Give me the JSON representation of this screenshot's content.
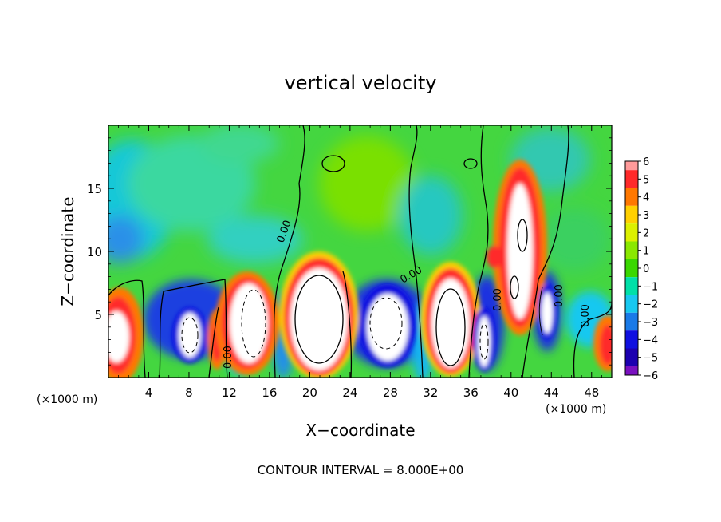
{
  "chart_data": {
    "type": "heatmap",
    "title": "vertical velocity",
    "xlabel": "X−coordinate",
    "ylabel": "Z−coordinate",
    "x_unit_left": "(×1000 m)",
    "x_unit_right": "(×1000 m)",
    "footer": "CONTOUR INTERVAL = 8.000E+00",
    "xlim": [
      0,
      50
    ],
    "ylim": [
      0,
      20
    ],
    "x_ticks": [
      "4",
      "8",
      "12",
      "16",
      "20",
      "24",
      "28",
      "32",
      "36",
      "40",
      "44",
      "48"
    ],
    "y_ticks": [
      "5",
      "10",
      "15"
    ],
    "colorbar": {
      "min": -6,
      "max": 6,
      "labels": [
        "6",
        "5",
        "4",
        "3",
        "2",
        "1",
        "0",
        "−1",
        "−2",
        "−3",
        "−4",
        "−5",
        "−6"
      ],
      "colors": [
        "#ff9a9a",
        "#ff2a2a",
        "#ff7800",
        "#ffd000",
        "#dcf000",
        "#8ae800",
        "#3ad800",
        "#00e0a8",
        "#18c8f0",
        "#1a7ae8",
        "#1010e0",
        "#1c00b0",
        "#7a10c0"
      ]
    },
    "contour_label": "0.00",
    "cells": [
      {
        "x": 2,
        "z": 3,
        "w": 4.2,
        "value": 8.5
      },
      {
        "x": 8,
        "z": 3.5,
        "w": 6.2,
        "value": -8.5
      },
      {
        "x": 10.5,
        "z": 3,
        "w": 1,
        "value": 4
      },
      {
        "x": 14,
        "z": 4,
        "w": 3.5,
        "value": 8.5
      },
      {
        "x": 20.5,
        "z": 4.5,
        "w": 6,
        "value": 12
      },
      {
        "x": 28,
        "z": 4.5,
        "w": 6,
        "value": -9
      },
      {
        "x": 34,
        "z": 4,
        "w": 3.5,
        "value": 10
      },
      {
        "x": 37.5,
        "z": 3,
        "w": 2,
        "value": -8.5
      },
      {
        "x": 40.7,
        "z": 8,
        "w": 3,
        "value": 9
      },
      {
        "x": 43.5,
        "z": 5,
        "w": 1.5,
        "value": -8
      },
      {
        "x": 49.5,
        "z": 2.5,
        "w": 2,
        "value": 4
      }
    ]
  }
}
